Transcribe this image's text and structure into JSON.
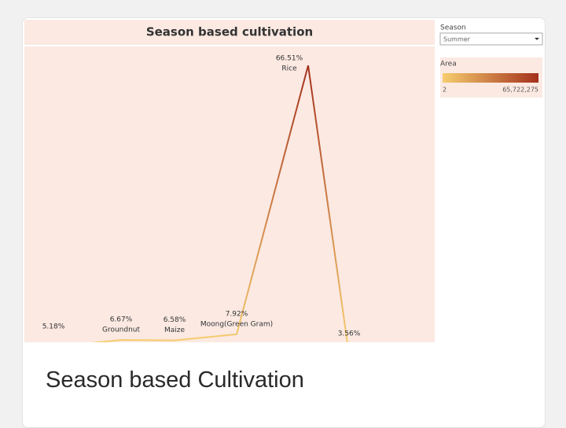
{
  "chart_data": {
    "type": "line",
    "title": "Season based cultivation",
    "categories": [
      null,
      "Groundnut",
      "Maize",
      "Moong(Green Gram)",
      "Rice",
      null
    ],
    "values": [
      5.18,
      6.67,
      6.58,
      7.92,
      66.51,
      3.56
    ],
    "value_labels": [
      "5.18%",
      "6.67%",
      "6.58%",
      "7.92%",
      "66.51%",
      "3.56%"
    ],
    "filter": {
      "title": "Season",
      "value": "Summer"
    },
    "color_legend": {
      "title": "Area",
      "range": [
        2,
        {
          "value": 65722275,
          "label": "65,722,275"
        }
      ],
      "colors": [
        "#f6cd6e",
        "#a4301c"
      ]
    }
  },
  "card_title": "Season based Cultivation"
}
